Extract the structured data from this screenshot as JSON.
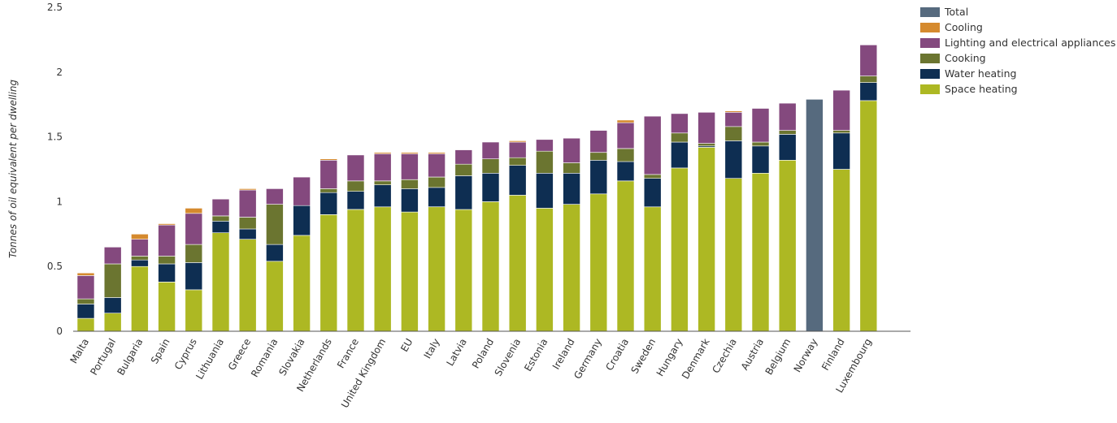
{
  "chart_data": {
    "type": "bar",
    "stacked": true,
    "title": "",
    "xlabel": "",
    "ylabel": "Tonnes of oil equivalent per dwelling",
    "ylim": [
      0,
      2.5
    ],
    "yticks": [
      0,
      0.5,
      1,
      1.5,
      2,
      2.5
    ],
    "ytick_labels": [
      "0",
      "0.5",
      "1",
      "1.5",
      "2",
      "2.5"
    ],
    "categories": [
      "Malta",
      "Portugal",
      "Bulgaria",
      "Spain",
      "Cyprus",
      "Lithuania",
      "Greece",
      "Romania",
      "Slovakia",
      "Netherlands",
      "France",
      "United Kingdom",
      "EU",
      "Italy",
      "Latvia",
      "Poland",
      "Slovenia",
      "Estonia",
      "Ireland",
      "Germany",
      "Croatia",
      "Sweden",
      "Hungary",
      "Denmark",
      "Czechia",
      "Austria",
      "Belgium",
      "Norway",
      "Finland",
      "Luxembourg"
    ],
    "series": [
      {
        "name": "Space heating",
        "color": "#adb823",
        "values": [
          0.1,
          0.14,
          0.5,
          0.38,
          0.32,
          0.76,
          0.71,
          0.54,
          0.74,
          0.9,
          0.94,
          0.96,
          0.92,
          0.96,
          0.94,
          1.0,
          1.05,
          0.95,
          0.98,
          1.06,
          1.16,
          0.96,
          1.26,
          1.42,
          1.18,
          1.22,
          1.32,
          0,
          1.25,
          1.78
        ]
      },
      {
        "name": "Water heating",
        "color": "#0e2e52",
        "values": [
          0.11,
          0.12,
          0.05,
          0.14,
          0.21,
          0.09,
          0.08,
          0.13,
          0.23,
          0.17,
          0.14,
          0.17,
          0.18,
          0.15,
          0.26,
          0.22,
          0.23,
          0.27,
          0.24,
          0.26,
          0.15,
          0.22,
          0.2,
          0.01,
          0.29,
          0.21,
          0.2,
          0,
          0.28,
          0.14
        ]
      },
      {
        "name": "Cooking",
        "color": "#6b7530",
        "values": [
          0.04,
          0.26,
          0.03,
          0.06,
          0.14,
          0.04,
          0.09,
          0.31,
          0.0,
          0.03,
          0.08,
          0.03,
          0.07,
          0.08,
          0.09,
          0.11,
          0.06,
          0.17,
          0.08,
          0.06,
          0.1,
          0.03,
          0.07,
          0.02,
          0.11,
          0.03,
          0.03,
          0,
          0.02,
          0.05
        ]
      },
      {
        "name": "Lighting and electrical appliances",
        "color": "#84497e",
        "values": [
          0.18,
          0.13,
          0.13,
          0.24,
          0.24,
          0.13,
          0.21,
          0.12,
          0.22,
          0.22,
          0.2,
          0.21,
          0.2,
          0.18,
          0.11,
          0.13,
          0.12,
          0.09,
          0.19,
          0.17,
          0.2,
          0.45,
          0.15,
          0.24,
          0.11,
          0.26,
          0.21,
          0,
          0.31,
          0.24
        ]
      },
      {
        "name": "Cooling",
        "color": "#d58a2e",
        "values": [
          0.02,
          0.0,
          0.04,
          0.01,
          0.04,
          0.0,
          0.01,
          0.0,
          0.0,
          0.01,
          0.0,
          0.01,
          0.01,
          0.01,
          0.0,
          0.0,
          0.01,
          0.0,
          0.0,
          0.0,
          0.02,
          0.0,
          0.0,
          0.0,
          0.01,
          0.0,
          0.0,
          0,
          0.0,
          0.0
        ]
      },
      {
        "name": "Total",
        "color": "#566a7e",
        "values": [
          0,
          0,
          0,
          0,
          0,
          0,
          0,
          0,
          0,
          0,
          0,
          0,
          0,
          0,
          0,
          0,
          0,
          0,
          0,
          0,
          0,
          0,
          0,
          0,
          0,
          0,
          0,
          1.79,
          0,
          0
        ]
      }
    ],
    "legend_order": [
      "Total",
      "Cooling",
      "Lighting and electrical appliances",
      "Cooking",
      "Water heating",
      "Space heating"
    ],
    "legend_position": "top-right",
    "grid": false
  }
}
